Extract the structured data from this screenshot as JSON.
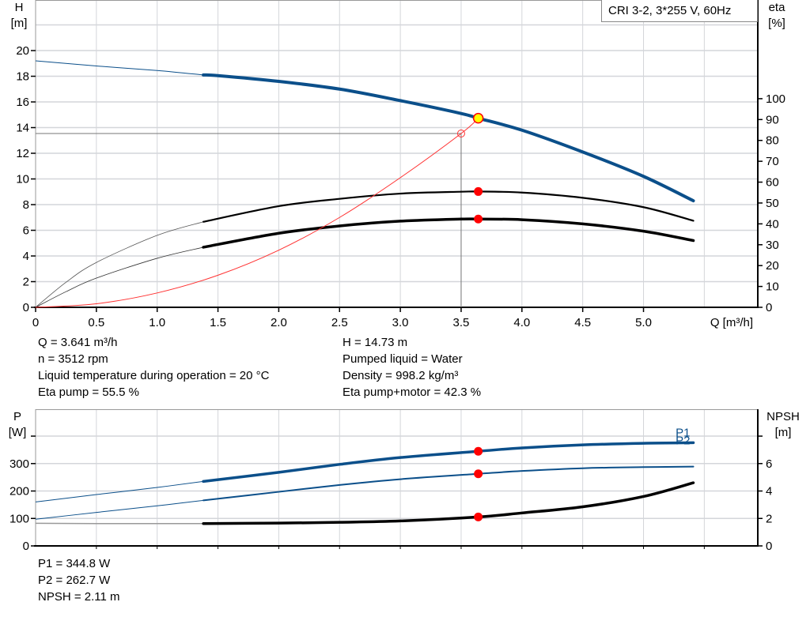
{
  "chart_data": [
    {
      "type": "line",
      "title": "CRI 3-2, 3*255 V, 60Hz",
      "xlabel": "Q [m³/h]",
      "ylabel": [
        "H",
        "[m]"
      ],
      "y2label": [
        "eta",
        "[%]"
      ],
      "xlim": [
        0,
        5.94
      ],
      "ylim": [
        0,
        23.94
      ],
      "y2lim": [
        0,
        147.3
      ],
      "xticks": [
        "0",
        "0.5",
        "1.0",
        "1.5",
        "2.0",
        "2.5",
        "3.0",
        "3.5",
        "4.0",
        "4.5",
        "5.0"
      ],
      "yticks": [
        "0",
        "2",
        "4",
        "6",
        "8",
        "10",
        "12",
        "14",
        "16",
        "18",
        "20"
      ],
      "y2ticks": [
        "0",
        "10",
        "20",
        "30",
        "40",
        "50",
        "60",
        "70",
        "80",
        "90",
        "100"
      ],
      "grid": true,
      "series": [
        {
          "id": "H",
          "axis": "left",
          "color": "#0b4f8a",
          "operating_range": [
            1.38,
            5.41
          ],
          "x": [
            0,
            0.5,
            1.0,
            1.38,
            1.5,
            2.0,
            2.5,
            3.0,
            3.5,
            3.641,
            4.0,
            4.5,
            5.0,
            5.41
          ],
          "y": [
            19.2,
            18.8,
            18.45,
            18.1,
            18.05,
            17.6,
            17.0,
            16.1,
            15.1,
            14.73,
            13.8,
            12.1,
            10.2,
            8.3
          ]
        },
        {
          "id": "eta_pump",
          "axis": "right",
          "color": "#000000",
          "operating_range": [
            1.38,
            5.41
          ],
          "x": [
            0,
            0.25,
            0.5,
            1.0,
            1.38,
            2.0,
            2.5,
            3.0,
            3.5,
            3.641,
            4.0,
            4.5,
            5.0,
            5.41
          ],
          "y": [
            0,
            12,
            21.5,
            34.5,
            41,
            48.5,
            52,
            54.5,
            55.4,
            55.5,
            55,
            52.5,
            48,
            41.5
          ]
        },
        {
          "id": "eta_pump_motor",
          "axis": "right",
          "color": "#000000",
          "operating_range": [
            1.38,
            5.41
          ],
          "x": [
            0,
            0.25,
            0.5,
            1.0,
            1.38,
            2.0,
            2.5,
            3.0,
            3.5,
            3.641,
            4.0,
            4.5,
            5.0,
            5.41
          ],
          "y": [
            0,
            7.5,
            14,
            23.5,
            28.8,
            35.5,
            39,
            41.3,
            42.3,
            42.3,
            42,
            40,
            36.5,
            32
          ]
        },
        {
          "id": "system_curve",
          "axis": "left",
          "color": "#ff3030",
          "operating_range": null,
          "x": [
            0,
            0.5,
            1.0,
            1.5,
            2.0,
            2.5,
            3.0,
            3.5,
            3.641
          ],
          "y": [
            0,
            0.28,
            1.12,
            2.5,
            4.45,
            7.0,
            10.1,
            13.54,
            14.73
          ]
        }
      ],
      "reference_point": {
        "q": 3.5,
        "h": 13.54
      },
      "duty_point": {
        "q": 3.641,
        "h": 14.73,
        "eta_pump": 55.5,
        "eta_pump_motor": 42.3
      }
    },
    {
      "type": "line",
      "xlim": [
        0,
        5.94
      ],
      "ylim": [
        0,
        498
      ],
      "y2lim": [
        0,
        9.96
      ],
      "ylabel": [
        "P",
        "[W]"
      ],
      "y2label": [
        "NPSH",
        "[m]"
      ],
      "yticks": [
        "0",
        "100",
        "200",
        "300",
        ""
      ],
      "y2ticks": [
        "0",
        "2",
        "4",
        "6",
        ""
      ],
      "grid": true,
      "series": [
        {
          "id": "P1",
          "name": "P1",
          "axis": "left",
          "color": "#0b4f8a",
          "operating_range": [
            1.38,
            5.41
          ],
          "x": [
            0,
            0.5,
            1.0,
            1.38,
            2.0,
            2.5,
            3.0,
            3.641,
            4.0,
            4.5,
            5.0,
            5.41
          ],
          "y": [
            160,
            187,
            213,
            235,
            268,
            297,
            322,
            344.8,
            357,
            368,
            374,
            376
          ]
        },
        {
          "id": "P2",
          "name": "P2",
          "axis": "left",
          "color": "#0b4f8a",
          "operating_range": [
            1.38,
            5.41
          ],
          "x": [
            0,
            0.5,
            1.0,
            1.38,
            2.0,
            2.5,
            3.0,
            3.641,
            4.0,
            4.5,
            5.0,
            5.41
          ],
          "y": [
            97,
            122,
            146,
            166,
            197,
            222,
            243,
            262.7,
            273,
            283,
            287,
            289
          ]
        },
        {
          "id": "NPSH",
          "axis": "right",
          "color": "#000000",
          "operating_range": [
            1.38,
            5.41
          ],
          "x": [
            0,
            0.5,
            1.0,
            1.38,
            2.0,
            2.5,
            3.0,
            3.641,
            4.0,
            4.5,
            5.0,
            5.41
          ],
          "y": [
            1.65,
            1.63,
            1.63,
            1.63,
            1.66,
            1.72,
            1.82,
            2.11,
            2.4,
            2.85,
            3.6,
            4.6
          ]
        }
      ],
      "duty_point": {
        "q": 3.641,
        "p1": 344.8,
        "p2": 262.7,
        "npsh": 2.11
      }
    }
  ],
  "info": {
    "left": [
      "Q = 3.641 m³/h",
      "n = 3512 rpm",
      "Liquid temperature during operation = 20 °C",
      "Eta pump = 55.5 %"
    ],
    "right": [
      "H = 14.73 m",
      "Pumped liquid = Water",
      "Density = 998.2 kg/m³",
      "Eta pump+motor = 42.3 %"
    ],
    "bottom": [
      "P1 = 344.8 W",
      "P2 = 262.7 W",
      "NPSH = 2.11 m"
    ]
  },
  "colors": {
    "grid": "#d4d6da",
    "duty_marker": "#ff0000",
    "duty_highlight": "#ffff00",
    "head": "#0b4f8a",
    "system": "#ff3030"
  }
}
